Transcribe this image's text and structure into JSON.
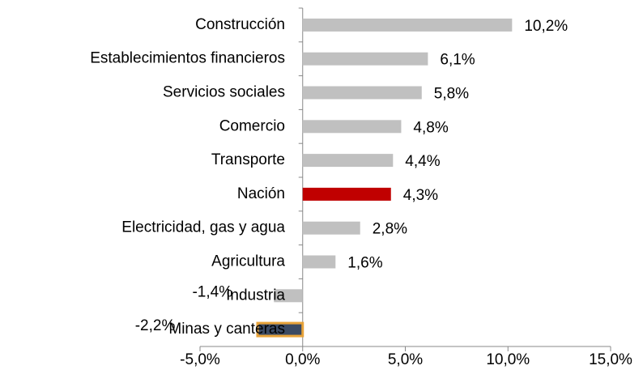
{
  "chart_data": {
    "type": "bar",
    "orientation": "horizontal",
    "categories": [
      "Construcción",
      "Establecimientos financieros",
      "Servicios sociales",
      "Comercio",
      "Transporte",
      "Nación",
      "Electricidad, gas y agua",
      "Agricultura",
      "Industria",
      "Minas y canteras"
    ],
    "values": [
      10.2,
      6.1,
      5.8,
      4.8,
      4.4,
      4.3,
      2.8,
      1.6,
      -1.4,
      -2.2
    ],
    "value_labels": [
      "10,2%",
      "6,1%",
      "5,8%",
      "4,8%",
      "4,4%",
      "4,3%",
      "2,8%",
      "1,6%",
      "-1,4%",
      "-2,2%"
    ],
    "colors": [
      "#c0c0c0",
      "#c0c0c0",
      "#c0c0c0",
      "#c0c0c0",
      "#c0c0c0",
      "#c00000",
      "#c0c0c0",
      "#c0c0c0",
      "#c0c0c0",
      "#3b4a63"
    ],
    "xlim": [
      -5,
      15
    ],
    "xticks": [
      {
        "value": -5,
        "label": "-5,0%"
      },
      {
        "value": 0,
        "label": "0,0%"
      },
      {
        "value": 5,
        "label": "5,0%"
      },
      {
        "value": 10,
        "label": "10,0%"
      },
      {
        "value": 15,
        "label": "15,0%"
      }
    ],
    "grid": false
  }
}
